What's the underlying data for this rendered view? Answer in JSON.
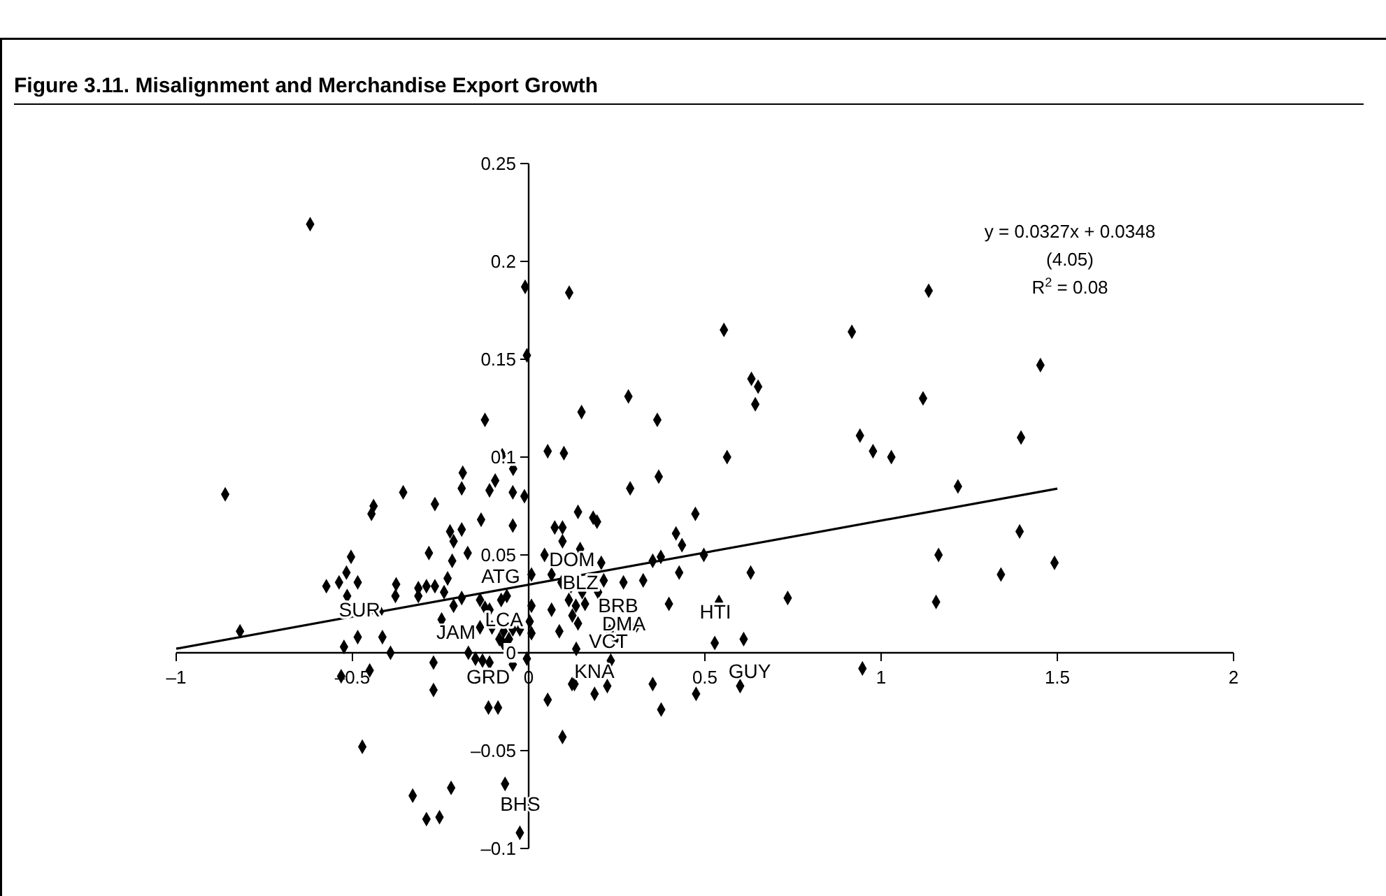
{
  "chart_data": {
    "type": "scatter",
    "title": "Figure 3.11.  Misalignment and Merchandise Export Growth",
    "series": [
      {
        "color": "#000000",
        "marker": "diamond",
        "x": [
          -0.62,
          -0.01,
          0.115,
          -0.005,
          -0.124,
          0.054,
          0.1,
          -0.075,
          -0.044,
          -0.187,
          -0.861,
          -0.095,
          -0.111,
          -0.19,
          -0.045,
          -0.012,
          -0.356,
          -0.44,
          -0.446,
          -0.266,
          -0.135,
          -0.19,
          -0.223,
          -0.045,
          -0.213,
          -0.217,
          -0.283,
          -0.173,
          -0.504,
          -0.517,
          -0.574,
          -0.538,
          -0.515,
          -0.485,
          -0.376,
          -0.378,
          -0.313,
          -0.313,
          -0.29,
          -0.266,
          -0.23,
          -0.24,
          -0.19,
          -0.213,
          -0.138,
          -0.124,
          -0.111,
          -0.078,
          -0.062,
          0.008,
          -0.422,
          -0.247,
          -0.819,
          -0.138,
          -0.104,
          -0.071,
          -0.045,
          0.008,
          -0.083,
          -0.056,
          -0.073,
          -0.025,
          -0.485,
          -0.415,
          -0.524,
          -0.392,
          -0.171,
          -0.151,
          -0.131,
          -0.111,
          -0.005,
          -0.27,
          -0.045,
          -0.532,
          -0.451,
          -0.27,
          -0.114,
          -0.087,
          0.123,
          0.054,
          -0.472,
          0.096,
          -0.067,
          -0.329,
          -0.22,
          -0.29,
          -0.253,
          -0.025,
          0.008,
          0.283,
          0.15,
          0.365,
          0.643,
          0.563,
          0.369,
          0.288,
          0.14,
          0.183,
          0.194,
          0.473,
          0.074,
          0.096,
          0.096,
          0.418,
          0.435,
          0.146,
          0.045,
          0.497,
          0.352,
          0.375,
          0.206,
          0.63,
          0.427,
          0.065,
          0.093,
          0.12,
          0.213,
          0.269,
          0.325,
          0.197,
          0.152,
          0.114,
          0.54,
          0.735,
          0.398,
          0.134,
          0.16,
          0.065,
          0.124,
          0.306,
          0.14,
          0.087,
          0.23,
          0.246,
          0.003,
          0.61,
          0.528,
          0.135,
          0.233,
          0.13,
          0.223,
          0.187,
          0.352,
          0.475,
          0.6,
          0.376,
          0.554,
          0.632,
          0.651,
          1.135,
          0.917,
          1.452,
          1.119,
          0.94,
          0.977,
          1.029,
          1.397,
          1.218,
          1.393,
          1.163,
          1.34,
          1.492,
          1.156,
          0.947
        ],
        "values": [
          0.219,
          0.187,
          0.184,
          0.152,
          0.119,
          0.103,
          0.102,
          0.101,
          0.094,
          0.092,
          0.081,
          0.088,
          0.083,
          0.084,
          0.082,
          0.08,
          0.082,
          0.075,
          0.071,
          0.076,
          0.068,
          0.063,
          0.062,
          0.065,
          0.057,
          0.047,
          0.051,
          0.051,
          0.049,
          0.041,
          0.034,
          0.036,
          0.029,
          0.036,
          0.035,
          0.029,
          0.033,
          0.029,
          0.034,
          0.034,
          0.038,
          0.031,
          0.028,
          0.024,
          0.027,
          0.023,
          0.022,
          0.027,
          0.029,
          0.024,
          0.021,
          0.017,
          0.011,
          0.013,
          0.013,
          0.011,
          0.012,
          0.01,
          0.007,
          0.007,
          0.005,
          0.012,
          0.008,
          0.008,
          0.003,
          0,
          0,
          -0.003,
          -0.004,
          -0.005,
          -0.003,
          -0.005,
          -0.006,
          -0.012,
          -0.009,
          -0.019,
          -0.028,
          -0.028,
          -0.016,
          -0.024,
          -0.048,
          -0.043,
          -0.067,
          -0.073,
          -0.069,
          -0.085,
          -0.084,
          -0.092,
          0.04,
          0.131,
          0.123,
          0.119,
          0.127,
          0.1,
          0.09,
          0.084,
          0.072,
          0.069,
          0.067,
          0.071,
          0.064,
          0.064,
          0.057,
          0.061,
          0.055,
          0.053,
          0.05,
          0.05,
          0.047,
          0.049,
          0.046,
          0.041,
          0.041,
          0.04,
          0.036,
          0.034,
          0.037,
          0.036,
          0.037,
          0.031,
          0.031,
          0.027,
          0.026,
          0.028,
          0.025,
          0.024,
          0.025,
          0.022,
          0.019,
          0.014,
          0.015,
          0.011,
          0.011,
          0.007,
          0.016,
          0.007,
          0.005,
          0.002,
          -0.004,
          -0.016,
          -0.017,
          -0.021,
          -0.016,
          -0.021,
          -0.017,
          -0.029,
          0.165,
          0.14,
          0.136,
          0.185,
          0.164,
          0.147,
          0.13,
          0.111,
          0.103,
          0.1,
          0.11,
          0.085,
          0.062,
          0.05,
          0.04,
          0.046,
          0.026,
          -0.008
        ]
      },
      {
        "type": "line",
        "color": "#000000",
        "x": [
          -1,
          1.5
        ],
        "values": [
          0.0021,
          0.0839
        ]
      }
    ],
    "xlim": [
      -1,
      2
    ],
    "xticks": [
      {
        "value": -1,
        "label": "–1"
      },
      {
        "value": -0.5,
        "label": "–0.5"
      },
      0,
      0.5,
      1,
      1.5,
      2
    ],
    "ylim": [
      -0.1,
      0.25
    ],
    "yticks": [
      {
        "value": -0.1,
        "label": "–0.1"
      },
      {
        "value": -0.05,
        "label": "–0.05"
      },
      0,
      0.05,
      0.1,
      0.15,
      0.2,
      0.25
    ],
    "grid": false,
    "annotations": [
      "y = 0.0327x + 0.0348",
      "(4.05)",
      "R$^{2}$ = 0.08",
      {
        "text": "SUR",
        "x": -0.48,
        "y": 0.022
      },
      "ATG",
      "DOM",
      {
        "text": "BLZ",
        "x": 0.147,
        "y": 0.036
      },
      "BRB",
      "DMA",
      {
        "text": "HTI",
        "x": 0.53,
        "y": 0.021
      },
      "GUY",
      {
        "text": "VCT",
        "x": 0.226,
        "y": 0.006
      },
      "KNA",
      "JAM",
      {
        "text": "LCA",
        "x": -0.07,
        "y": 0.017
      },
      {
        "text": "GRD",
        "x": -0.115,
        "y": -0.012
      },
      "BHS"
    ]
  }
}
